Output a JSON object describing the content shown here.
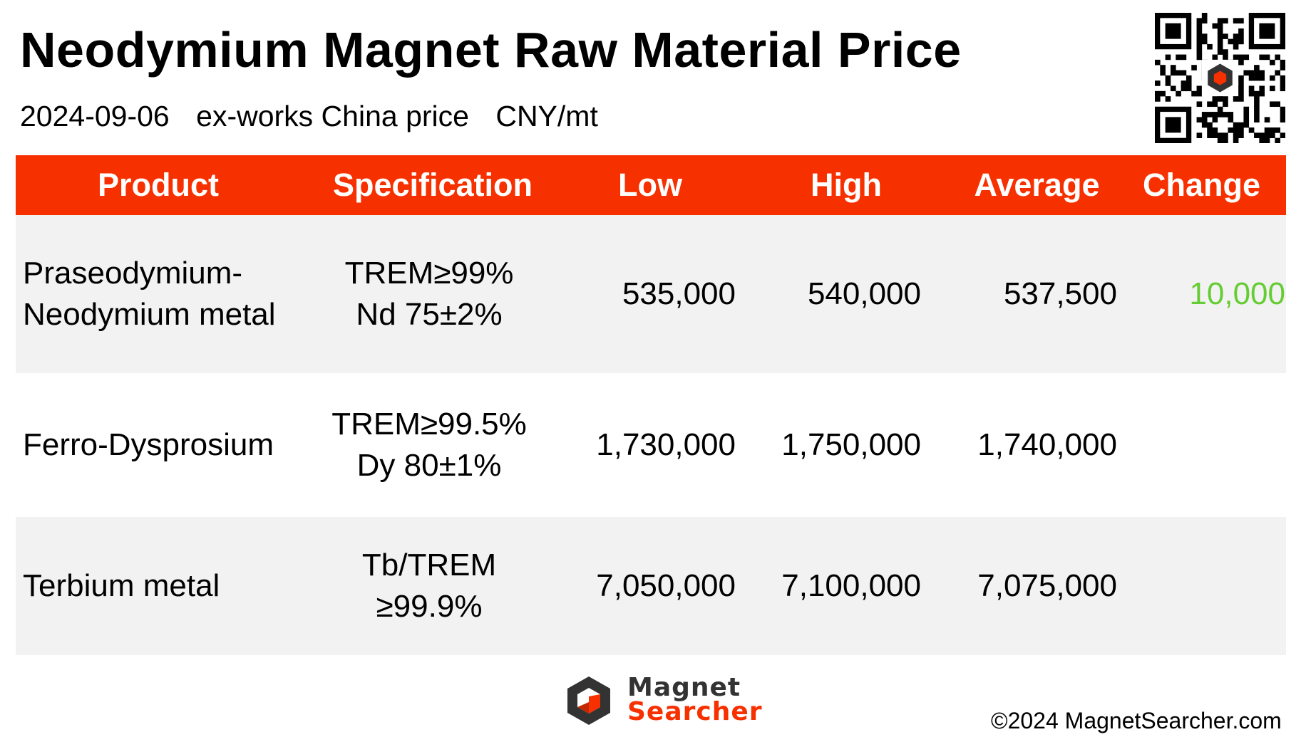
{
  "header": {
    "title": "Neodymium Magnet Raw Material Price",
    "date": "2024-09-06",
    "basis": "ex-works China price",
    "unit": "CNY/mt"
  },
  "table": {
    "columns": [
      "Product",
      "Specification",
      "Low",
      "High",
      "Average",
      "Change"
    ],
    "rows": [
      {
        "product_line1": "Praseodymium-",
        "product_line2": "Neodymium metal",
        "spec_line1": "TREM≥99%",
        "spec_line2": "Nd 75±2%",
        "low": "535,000",
        "high": "540,000",
        "average": "537,500",
        "change": "10,000"
      },
      {
        "product_line1": "Ferro-Dysprosium",
        "product_line2": "",
        "spec_line1": "TREM≥99.5%",
        "spec_line2": "Dy 80±1%",
        "low": "1,730,000",
        "high": "1,750,000",
        "average": "1,740,000",
        "change": ""
      },
      {
        "product_line1": "Terbium metal",
        "product_line2": "",
        "spec_line1": "Tb/TREM",
        "spec_line2": "≥99.9%",
        "low": "7,050,000",
        "high": "7,100,000",
        "average": "7,075,000",
        "change": ""
      }
    ]
  },
  "colors": {
    "header_bg": "#f73000",
    "row_shade": "#f2f2f2",
    "change_up": "#66cc33",
    "brand_dark": "#333333"
  },
  "footer": {
    "logo_line1": "Magnet",
    "logo_line2": "Searcher",
    "copyright": "©2024 MagnetSearcher.com"
  }
}
